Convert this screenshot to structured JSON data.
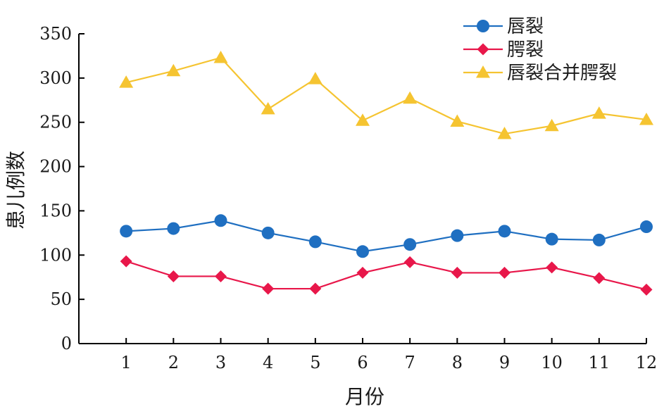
{
  "chart_data": {
    "type": "line",
    "xlabel": "月份",
    "ylabel": "患儿例数",
    "x": [
      1,
      2,
      3,
      4,
      5,
      6,
      7,
      8,
      9,
      10,
      11,
      12
    ],
    "xticks": [
      "1",
      "2",
      "3",
      "4",
      "5",
      "6",
      "7",
      "8",
      "9",
      "10",
      "11",
      "12"
    ],
    "xlim": [
      0,
      12
    ],
    "ylim": [
      0,
      350
    ],
    "yticks": [
      "0",
      "50",
      "100",
      "150",
      "200",
      "250",
      "300",
      "350"
    ],
    "grid": false,
    "legend_position": "top-right",
    "series": [
      {
        "name": "唇裂",
        "color": "#1f6fc1",
        "marker": "circle",
        "values": [
          127,
          130,
          139,
          125,
          115,
          104,
          112,
          122,
          127,
          118,
          117,
          132
        ]
      },
      {
        "name": "腭裂",
        "color": "#e8174a",
        "marker": "diamond",
        "values": [
          93,
          76,
          76,
          62,
          62,
          80,
          92,
          80,
          80,
          86,
          74,
          61
        ]
      },
      {
        "name": "唇裂合并腭裂",
        "color": "#f5c431",
        "marker": "triangle",
        "values": [
          295,
          308,
          323,
          265,
          299,
          252,
          277,
          251,
          237,
          246,
          260,
          253
        ]
      }
    ]
  }
}
